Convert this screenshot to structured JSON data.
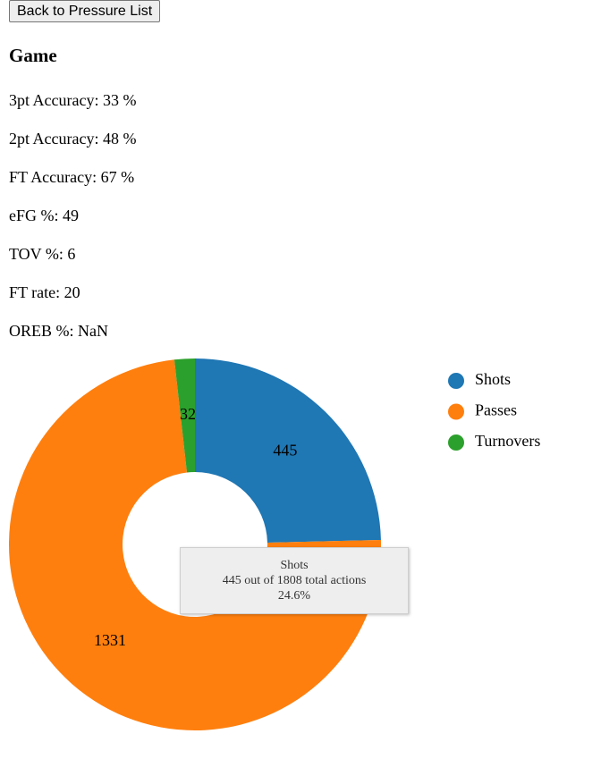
{
  "nav": {
    "back_label": "Back to Pressure List"
  },
  "page_title": "Game",
  "stats": [
    {
      "label": "3pt Accuracy",
      "text": "3pt Accuracy: 33 %"
    },
    {
      "label": "2pt Accuracy",
      "text": "2pt Accuracy: 48 %"
    },
    {
      "label": "FT Accuracy",
      "text": "FT Accuracy: 67 %"
    },
    {
      "label": "eFG %",
      "text": "eFG %: 49"
    },
    {
      "label": "TOV %",
      "text": "TOV %: 6"
    },
    {
      "label": "FT rate",
      "text": "FT rate: 20"
    },
    {
      "label": "OREB %",
      "text": "OREB %: NaN"
    }
  ],
  "chart_data": {
    "type": "pie",
    "donut": true,
    "categories": [
      "Shots",
      "Passes",
      "Turnovers"
    ],
    "values": [
      445,
      1331,
      32
    ],
    "colors": [
      "#1f77b4",
      "#ff7f0e",
      "#2ca02c"
    ],
    "legend_position": "right",
    "tooltip": {
      "title": "Shots",
      "line2": "445 out of 1808 total actions",
      "line3": "24.6%"
    }
  }
}
